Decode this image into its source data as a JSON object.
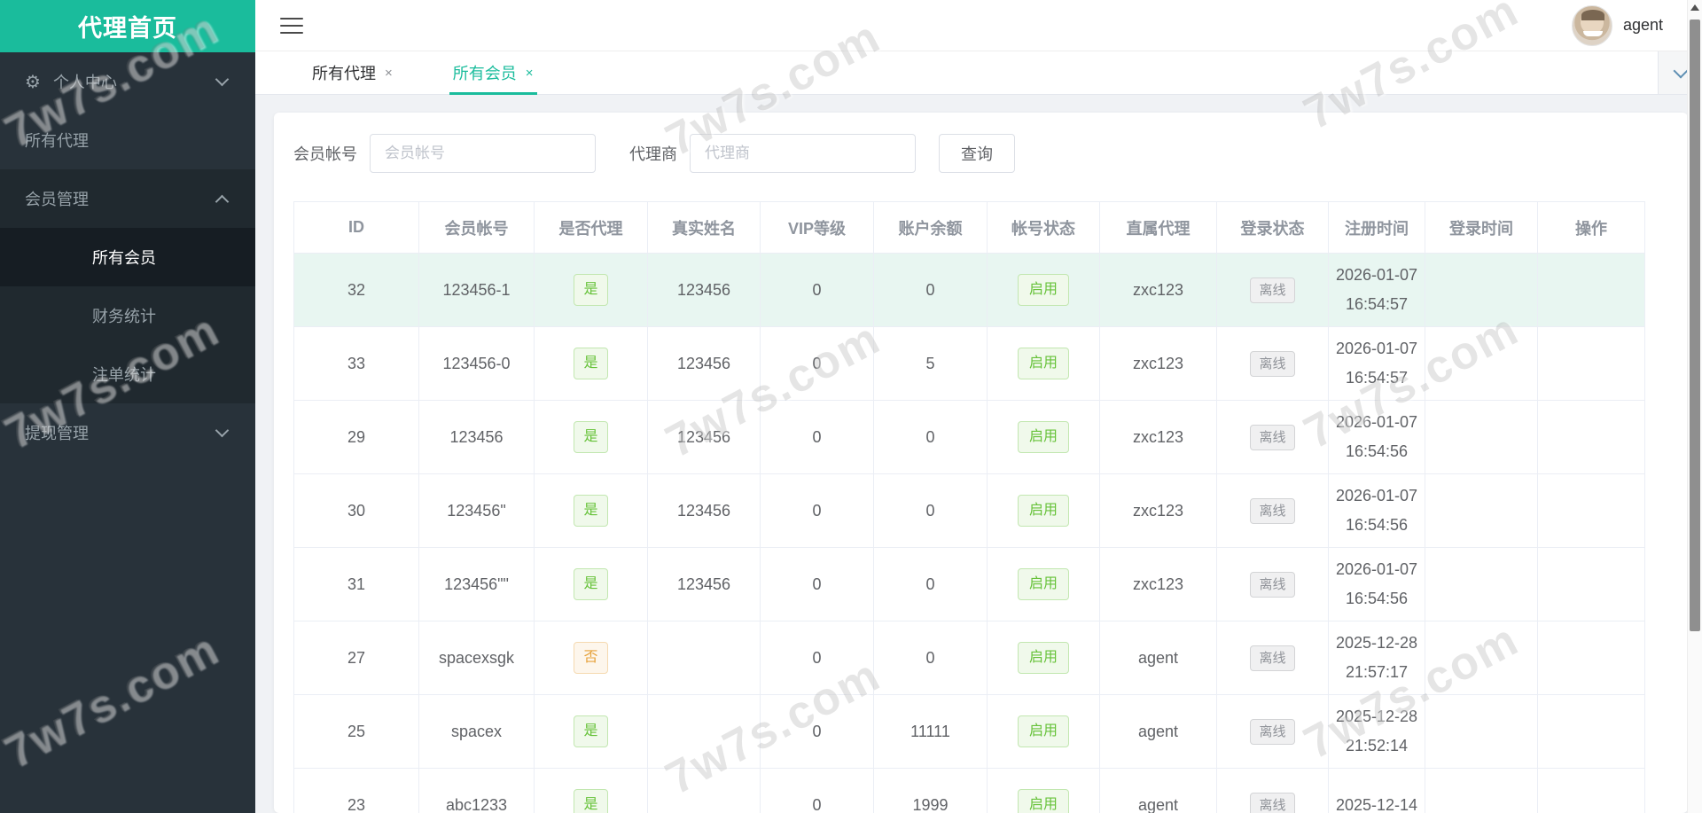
{
  "watermark": {
    "text": "7w7s.com"
  },
  "colors": {
    "accent": "#1abc9c",
    "sidebar_bg": "#28323a",
    "success": "#67c23a",
    "warning": "#e6a23c",
    "info": "#909399",
    "row_highlight": "#e8f6f1"
  },
  "sidebar": {
    "title": "代理首页",
    "items": [
      {
        "label": "个人中心",
        "icon": "gear-icon",
        "chevron": "down"
      },
      {
        "label": "所有代理"
      },
      {
        "label": "会员管理",
        "chevron": "up"
      },
      {
        "label": "所有会员",
        "active": true
      },
      {
        "label": "财务统计"
      },
      {
        "label": "注单统计"
      },
      {
        "label": "提现管理",
        "chevron": "down"
      }
    ]
  },
  "topbar": {
    "username": "agent"
  },
  "tabs": [
    {
      "label": "所有代理",
      "close": "×",
      "active": false
    },
    {
      "label": "所有会员",
      "close": "×",
      "active": true
    }
  ],
  "search": {
    "account_label": "会员帐号",
    "account_placeholder": "会员帐号",
    "agent_label": "代理商",
    "agent_placeholder": "代理商",
    "submit_label": "查询"
  },
  "table": {
    "headers": [
      "ID",
      "会员帐号",
      "是否代理",
      "真实姓名",
      "VIP等级",
      "账户余额",
      "帐号状态",
      "直属代理",
      "登录状态",
      "注册时间",
      "登录时间",
      "操作"
    ],
    "rows": [
      {
        "id": "32",
        "account": "123456-1",
        "is_agent": "是",
        "real_name": "123456",
        "vip": "0",
        "balance": "0",
        "status": "启用",
        "parent_agent": "zxc123",
        "online": "离线",
        "reg_date": "2026-01-07",
        "reg_time": "16:54:57",
        "login_time": "",
        "action": "",
        "highlight": true
      },
      {
        "id": "33",
        "account": "123456-0",
        "is_agent": "是",
        "real_name": "123456",
        "vip": "0",
        "balance": "5",
        "status": "启用",
        "parent_agent": "zxc123",
        "online": "离线",
        "reg_date": "2026-01-07",
        "reg_time": "16:54:57",
        "login_time": "",
        "action": ""
      },
      {
        "id": "29",
        "account": "123456",
        "is_agent": "是",
        "real_name": "123456",
        "vip": "0",
        "balance": "0",
        "status": "启用",
        "parent_agent": "zxc123",
        "online": "离线",
        "reg_date": "2026-01-07",
        "reg_time": "16:54:56",
        "login_time": "",
        "action": ""
      },
      {
        "id": "30",
        "account": "123456\"",
        "is_agent": "是",
        "real_name": "123456",
        "vip": "0",
        "balance": "0",
        "status": "启用",
        "parent_agent": "zxc123",
        "online": "离线",
        "reg_date": "2026-01-07",
        "reg_time": "16:54:56",
        "login_time": "",
        "action": ""
      },
      {
        "id": "31",
        "account": "123456\"\"",
        "is_agent": "是",
        "real_name": "123456",
        "vip": "0",
        "balance": "0",
        "status": "启用",
        "parent_agent": "zxc123",
        "online": "离线",
        "reg_date": "2026-01-07",
        "reg_time": "16:54:56",
        "login_time": "",
        "action": ""
      },
      {
        "id": "27",
        "account": "spacexsgk",
        "is_agent": "否",
        "real_name": "",
        "vip": "0",
        "balance": "0",
        "status": "启用",
        "parent_agent": "agent",
        "online": "离线",
        "reg_date": "2025-12-28",
        "reg_time": "21:57:17",
        "login_time": "",
        "action": ""
      },
      {
        "id": "25",
        "account": "spacex",
        "is_agent": "是",
        "real_name": "",
        "vip": "0",
        "balance": "11111",
        "status": "启用",
        "parent_agent": "agent",
        "online": "离线",
        "reg_date": "2025-12-28",
        "reg_time": "21:52:14",
        "login_time": "",
        "action": ""
      },
      {
        "id": "23",
        "account": "abc1233",
        "is_agent": "是",
        "real_name": "",
        "vip": "0",
        "balance": "1999",
        "status": "启用",
        "parent_agent": "agent",
        "online": "离线",
        "reg_date": "2025-12-14",
        "reg_time": "",
        "login_time": "",
        "action": ""
      }
    ]
  }
}
